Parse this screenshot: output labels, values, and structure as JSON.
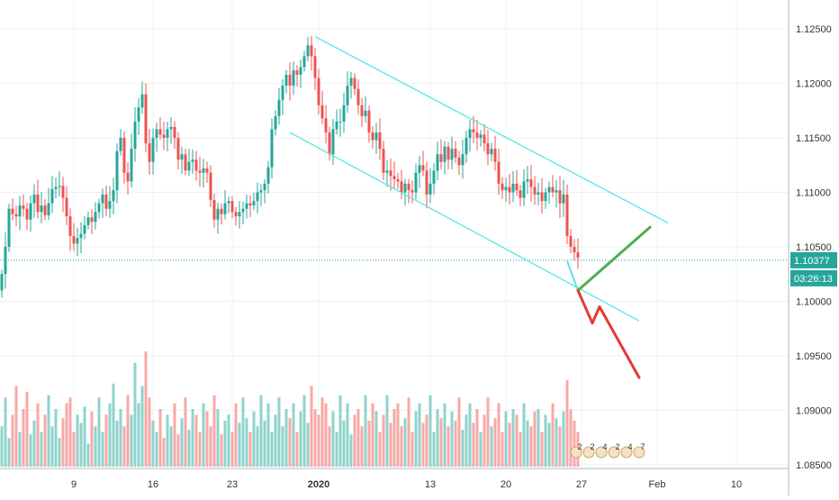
{
  "chart_data": {
    "type": "candlestick",
    "symbol_context": "EURUSD-like hourly candles",
    "y_axis": {
      "ticks": [
        "1.12500",
        "1.12000",
        "1.11500",
        "1.11000",
        "1.10500",
        "1.10000",
        "1.09500",
        "1.09000",
        "1.08500"
      ],
      "min": 1.083,
      "max": 1.127
    },
    "x_axis": {
      "ticks": [
        {
          "label": "9",
          "bold": false,
          "i": 20
        },
        {
          "label": "16",
          "bold": false,
          "i": 42
        },
        {
          "label": "23",
          "bold": false,
          "i": 64
        },
        {
          "label": "2020",
          "bold": true,
          "i": 88
        },
        {
          "label": "13",
          "bold": false,
          "i": 119
        },
        {
          "label": "20",
          "bold": false,
          "i": 140
        },
        {
          "label": "27",
          "bold": false,
          "i": 161
        },
        {
          "label": "Feb",
          "bold": false,
          "i": 182
        },
        {
          "label": "10",
          "bold": false,
          "i": 204
        }
      ]
    },
    "price_label": {
      "value": "1.10377",
      "price": 1.10377,
      "countdown": "03:26:13"
    },
    "candles_close": [
      1.1025,
      1.105,
      1.1085,
      1.108,
      1.1078,
      1.1088,
      1.1085,
      1.1075,
      1.109,
      1.1098,
      1.1082,
      1.1088,
      1.1079,
      1.109,
      1.1103,
      1.1105,
      1.1106,
      1.1095,
      1.1078,
      1.106,
      1.1053,
      1.1058,
      1.1062,
      1.107,
      1.1077,
      1.1073,
      1.1082,
      1.109,
      1.1098,
      1.1085,
      1.1092,
      1.1102,
      1.1138,
      1.115,
      1.1118,
      1.111,
      1.114,
      1.1165,
      1.1178,
      1.119,
      1.1145,
      1.1128,
      1.115,
      1.1158,
      1.1153,
      1.115,
      1.1158,
      1.116,
      1.115,
      1.113,
      1.1135,
      1.112,
      1.1128,
      1.113,
      1.112,
      1.1118,
      1.1122,
      1.1118,
      1.1093,
      1.1075,
      1.1085,
      1.108,
      1.109,
      1.1092,
      1.1082,
      1.1078,
      1.1082,
      1.1085,
      1.109,
      1.1088,
      1.1092,
      1.11,
      1.1102,
      1.1108,
      1.1123,
      1.1158,
      1.117,
      1.1185,
      1.1198,
      1.1208,
      1.1198,
      1.1212,
      1.1208,
      1.1215,
      1.1225,
      1.1235,
      1.1225,
      1.1205,
      1.118,
      1.1168,
      1.1155,
      1.1135,
      1.1158,
      1.1165,
      1.1165,
      1.118,
      1.1198,
      1.1205,
      1.1195,
      1.118,
      1.117,
      1.1175,
      1.1155,
      1.1148,
      1.1155,
      1.114,
      1.1118,
      1.112,
      1.1115,
      1.1112,
      1.111,
      1.11,
      1.1108,
      1.1102,
      1.11,
      1.1118,
      1.1125,
      1.112,
      1.1098,
      1.1108,
      1.112,
      1.1135,
      1.1128,
      1.1142,
      1.113,
      1.114,
      1.1132,
      1.1125,
      1.1135,
      1.115,
      1.1158,
      1.1155,
      1.115,
      1.1153,
      1.1145,
      1.1135,
      1.114,
      1.1128,
      1.1108,
      1.1102,
      1.1105,
      1.11,
      1.1108,
      1.1102,
      1.1095,
      1.111,
      1.1112,
      1.1105,
      1.1098,
      1.11,
      1.1092,
      1.11,
      1.1105,
      1.11,
      1.1102,
      1.109,
      1.1098,
      1.106,
      1.105,
      1.1045,
      1.104
    ],
    "volume_rel": [
      0.35,
      0.6,
      0.25,
      0.45,
      0.7,
      0.3,
      0.5,
      0.65,
      0.28,
      0.4,
      0.55,
      0.3,
      0.45,
      0.62,
      0.35,
      0.5,
      0.25,
      0.42,
      0.55,
      0.6,
      0.3,
      0.45,
      0.38,
      0.52,
      0.2,
      0.48,
      0.35,
      0.6,
      0.3,
      0.45,
      0.55,
      0.72,
      0.4,
      0.5,
      0.35,
      0.62,
      0.45,
      0.9,
      0.55,
      0.7,
      1.0,
      0.6,
      0.4,
      0.3,
      0.5,
      0.25,
      0.45,
      0.35,
      0.55,
      0.28,
      0.42,
      0.6,
      0.32,
      0.5,
      0.45,
      0.3,
      0.55,
      0.48,
      0.35,
      0.62,
      0.5,
      0.28,
      0.4,
      0.45,
      0.3,
      0.55,
      0.38,
      0.6,
      0.42,
      0.3,
      0.48,
      0.35,
      0.62,
      0.4,
      0.55,
      0.3,
      0.45,
      0.6,
      0.35,
      0.5,
      0.42,
      0.55,
      0.3,
      0.48,
      0.62,
      0.38,
      0.7,
      0.5,
      0.45,
      0.6,
      0.55,
      0.35,
      0.48,
      0.3,
      0.62,
      0.4,
      0.55,
      0.28,
      0.45,
      0.5,
      0.35,
      0.62,
      0.4,
      0.55,
      0.48,
      0.3,
      0.45,
      0.62,
      0.38,
      0.5,
      0.55,
      0.35,
      0.42,
      0.6,
      0.3,
      0.48,
      0.55,
      0.38,
      0.45,
      0.62,
      0.3,
      0.5,
      0.42,
      0.55,
      0.35,
      0.48,
      0.4,
      0.6,
      0.32,
      0.45,
      0.55,
      0.38,
      0.5,
      0.3,
      0.45,
      0.6,
      0.35,
      0.42,
      0.55,
      0.3,
      0.48,
      0.38,
      0.5,
      0.45,
      0.3,
      0.55,
      0.4,
      0.35,
      0.48,
      0.5,
      0.3,
      0.45,
      0.38,
      0.55,
      0.42,
      0.35,
      0.48,
      0.75,
      0.5,
      0.4,
      0.3
    ],
    "channel_upper": [
      {
        "i": 87,
        "p": 1.1243
      },
      {
        "i": 185,
        "p": 1.1072
      }
    ],
    "channel_lower": [
      {
        "i": 80,
        "p": 1.1155
      },
      {
        "i": 177,
        "p": 1.0982
      }
    ],
    "projection_up": [
      {
        "i": 157,
        "p": 1.1037
      },
      {
        "i": 160,
        "p": 1.101
      },
      {
        "i": 180,
        "p": 1.1068
      }
    ],
    "projection_down": [
      {
        "i": 160,
        "p": 1.101
      },
      {
        "i": 164,
        "p": 1.098
      },
      {
        "i": 166,
        "p": 1.0995
      },
      {
        "i": 177,
        "p": 1.093
      }
    ],
    "event_markers": [
      "2",
      "2",
      "4",
      "2",
      "4",
      "7"
    ],
    "colors": {
      "up": "#26a69a",
      "down": "#ef5350",
      "vol_up": "#8fd3cc",
      "vol_down": "#f7a9a7",
      "channel": "#53e8e8",
      "proj_up": "#4caf50",
      "proj_down": "#e53935",
      "price_line": "#26a69a",
      "grid": "#eef0f3",
      "axis_text": "#333333"
    }
  }
}
